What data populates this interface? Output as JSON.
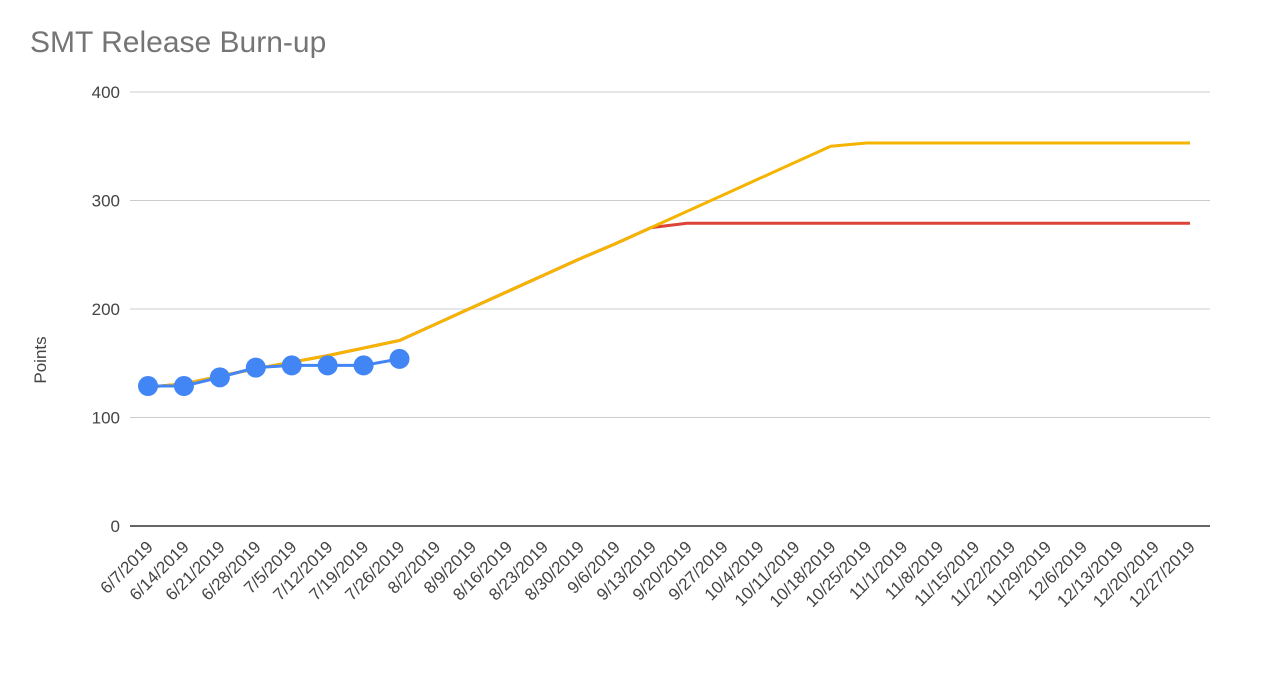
{
  "chart_data": {
    "type": "line",
    "title": "SMT Release Burn-up",
    "y_label": "Points",
    "categories": [
      "6/7/2019",
      "6/14/2019",
      "6/21/2019",
      "6/28/2019",
      "7/5/2019",
      "7/12/2019",
      "7/19/2019",
      "7/26/2019",
      "8/2/2019",
      "8/9/2019",
      "8/16/2019",
      "8/23/2019",
      "8/30/2019",
      "9/6/2019",
      "9/13/2019",
      "9/20/2019",
      "9/27/2019",
      "10/4/2019",
      "10/11/2019",
      "10/18/2019",
      "10/25/2019",
      "11/1/2019",
      "11/8/2019",
      "11/15/2019",
      "11/22/2019",
      "11/29/2019",
      "12/6/2019",
      "12/13/2019",
      "12/20/2019",
      "12/27/2019"
    ],
    "series": [
      {
        "color": "#db4437",
        "markers": false,
        "values": [
          128,
          131,
          138,
          145,
          151,
          157,
          164,
          171,
          186,
          201,
          216,
          231,
          246,
          260,
          275,
          279,
          279,
          279,
          279,
          279,
          279,
          279,
          279,
          279,
          279,
          279,
          279,
          279,
          279,
          279
        ]
      },
      {
        "color": "#f4b400",
        "markers": false,
        "values": [
          128,
          131,
          138,
          145,
          151,
          157,
          164,
          171,
          186,
          201,
          216,
          231,
          246,
          260,
          275,
          290,
          305,
          320,
          335,
          350,
          353,
          353,
          353,
          353,
          353,
          353,
          353,
          353,
          353,
          353
        ]
      },
      {
        "color": "#4285f4",
        "markers": true,
        "values": [
          129,
          129,
          137,
          146,
          148,
          148,
          148,
          154,
          null,
          null,
          null,
          null,
          null,
          null,
          null,
          null,
          null,
          null,
          null,
          null,
          null,
          null,
          null,
          null,
          null,
          null,
          null,
          null,
          null,
          null
        ]
      }
    ],
    "ylim": [
      0,
      400
    ],
    "yticks": [
      0,
      100,
      200,
      300,
      400
    ],
    "grid": true
  }
}
